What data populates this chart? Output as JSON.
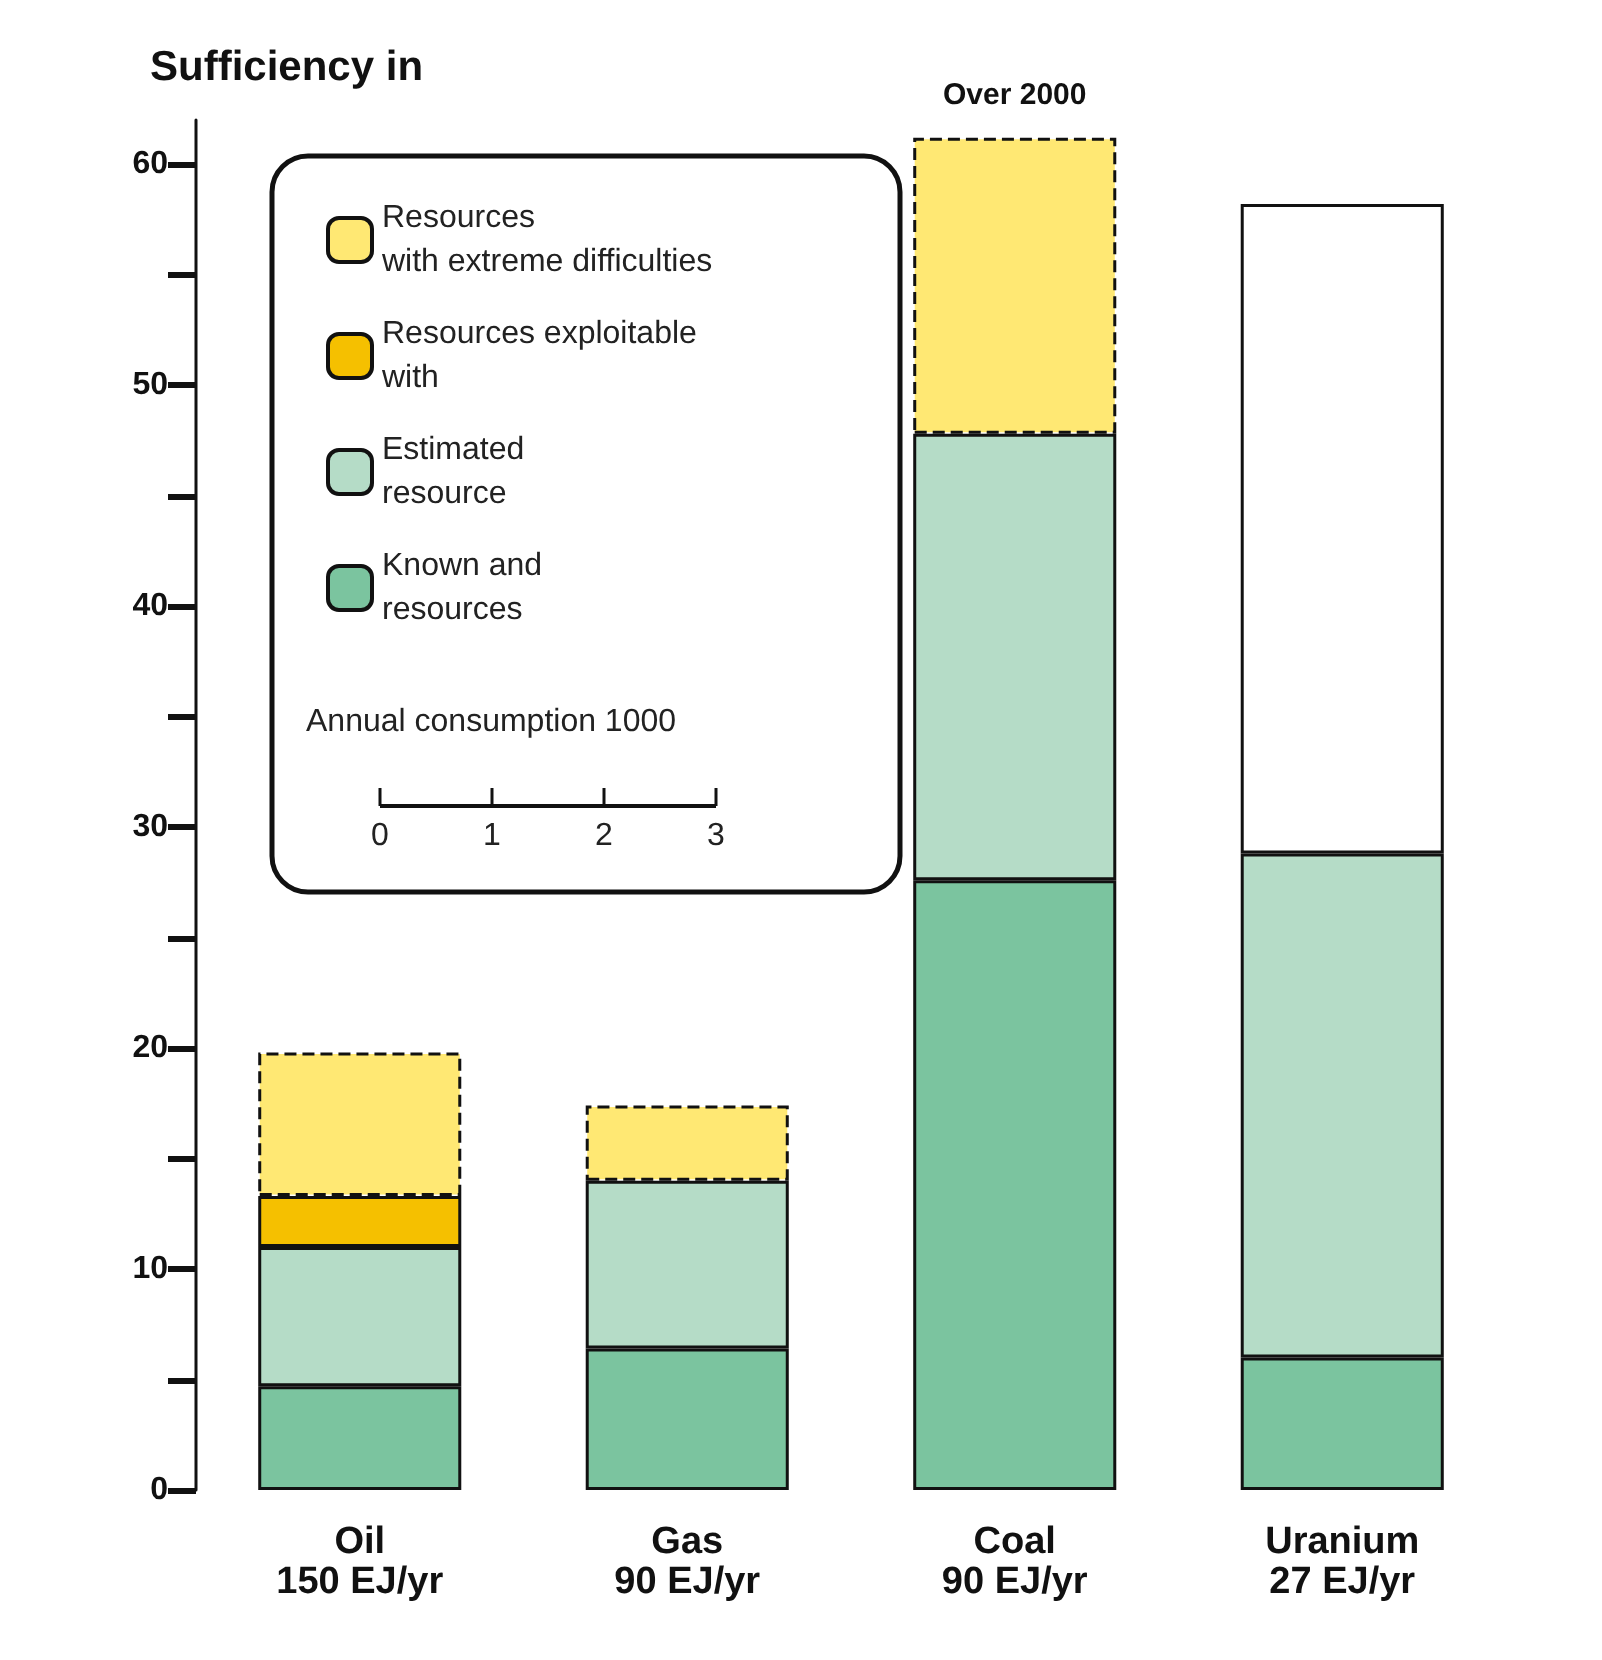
{
  "chart_data": {
    "type": "bar",
    "stacked": true,
    "title": "Sufficiency in",
    "categories": [
      "Oil\n150 EJ/yr",
      "Gas\n90 EJ/yr",
      "Coal\n90 EJ/yr",
      "Uranium\n27 EJ/yr"
    ],
    "series": [
      {
        "name": "Known and\nresources",
        "color": "#7bc49f",
        "values": [
          4.7,
          6.4,
          27.6,
          6.0
        ]
      },
      {
        "name": "Estimated\nresource",
        "color": "#b5dcc7",
        "values": [
          6.3,
          7.6,
          20.2,
          22.8
        ]
      },
      {
        "name": "Resources exploitable\nwith",
        "color": "#f5c000",
        "values": [
          2.3,
          null,
          null,
          null
        ]
      },
      {
        "name": "Resources\nwith extreme difficulties",
        "color": "#ffe873",
        "line_style": "dashed",
        "values": [
          6.5,
          3.4,
          13.4,
          null
        ]
      },
      {
        "color": "#ffffff",
        "values": [
          null,
          null,
          null,
          29.4
        ]
      }
    ],
    "ylim": [
      0,
      62
    ],
    "yticks": [
      0,
      {
        "value": 5,
        "label": null
      },
      10,
      {
        "value": 15,
        "label": null
      },
      20,
      {
        "value": 25,
        "label": null
      },
      30,
      {
        "value": 35,
        "label": null
      },
      40,
      {
        "value": 45,
        "label": null
      },
      50,
      {
        "value": 55,
        "label": null
      },
      60
    ],
    "grid": false,
    "legend": "top left",
    "annotations": [
      {
        "text": "Over 2000",
        "x": "Coal\n90 EJ/yr",
        "y": 61.2
      },
      "Annual consumption 1000",
      "0",
      "1",
      "2",
      "3"
    ]
  }
}
